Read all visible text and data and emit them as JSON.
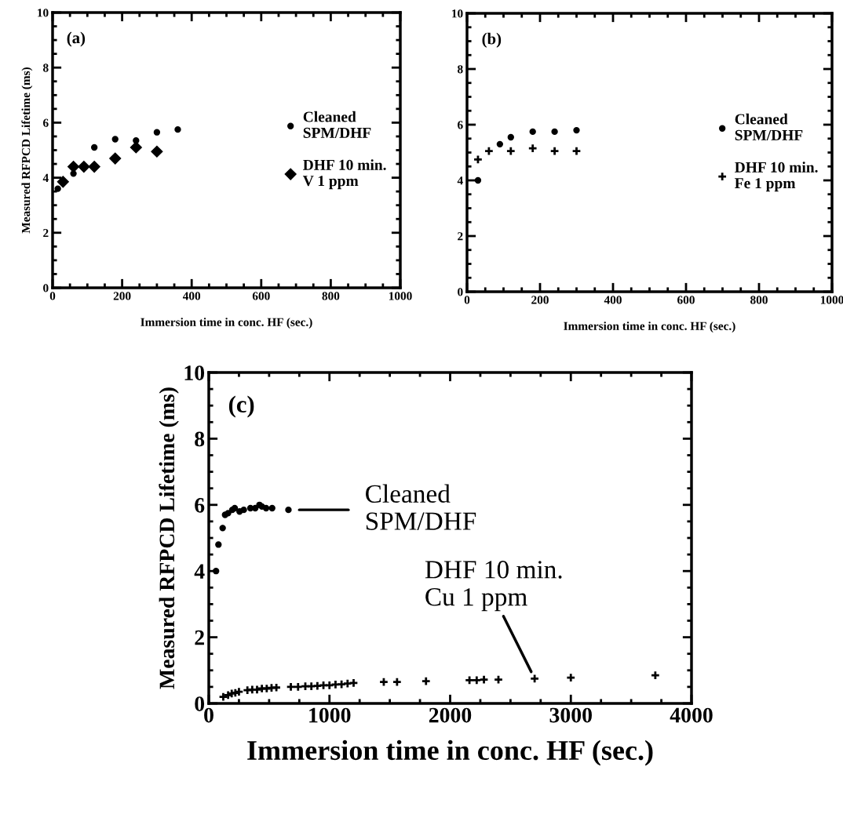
{
  "chart_data": [
    {
      "type": "scatter",
      "xlabel": "Immersion time in conc. HF (sec.)",
      "ylabel": "Measured RFPCD Lifetime (ms)",
      "xlim": [
        0,
        1000
      ],
      "xticks": [
        0,
        200,
        400,
        600,
        800,
        1000
      ],
      "ylim": [
        0,
        10
      ],
      "yticks": [
        0,
        2,
        4,
        6,
        8,
        10
      ],
      "legend": "right",
      "grid": false,
      "annotations": [
        "(a)"
      ],
      "series": [
        {
          "name": "Cleaned\nSPM/DHF",
          "color": "#000000",
          "marker": "circle",
          "x": [
            15,
            60,
            120,
            180,
            240,
            300,
            360
          ],
          "values": [
            3.6,
            4.15,
            5.1,
            5.4,
            5.35,
            5.65,
            5.75
          ]
        },
        {
          "name": "DHF 10 min.\nV 1 ppm",
          "color": "#000000",
          "marker": "diamond",
          "x": [
            30,
            60,
            90,
            120,
            180,
            240,
            300
          ],
          "values": [
            3.85,
            4.4,
            4.4,
            4.4,
            4.7,
            5.1,
            4.95
          ]
        }
      ]
    },
    {
      "type": "scatter",
      "xlabel": "Immersion time in conc. HF (sec.)",
      "xlim": [
        0,
        1000
      ],
      "xticks": [
        0,
        200,
        400,
        600,
        800,
        1000
      ],
      "ylim": [
        0,
        10
      ],
      "yticks": [
        0,
        2,
        4,
        6,
        8,
        10
      ],
      "legend": "right",
      "grid": false,
      "annotations": [
        "(b)"
      ],
      "series": [
        {
          "name": "Cleaned\nSPM/DHF",
          "color": "#000000",
          "marker": "circle",
          "x": [
            30,
            90,
            120,
            180,
            240,
            300
          ],
          "values": [
            4.0,
            5.3,
            5.55,
            5.75,
            5.75,
            5.8
          ]
        },
        {
          "name": "DHF 10 min.\nFe 1 ppm",
          "color": "#000000",
          "marker": "cross",
          "x": [
            30,
            60,
            120,
            180,
            240,
            300
          ],
          "values": [
            4.75,
            5.05,
            5.05,
            5.15,
            5.05,
            5.05
          ]
        }
      ]
    },
    {
      "type": "scatter",
      "xlabel": "Immersion time in conc. HF (sec.)",
      "ylabel": "Measured RFPCD Lifetime (ms)",
      "xlim": [
        0,
        4000
      ],
      "xticks": [
        0,
        1000,
        2000,
        3000,
        4000
      ],
      "ylim": [
        0,
        10
      ],
      "yticks": [
        0,
        2,
        4,
        6,
        8,
        10
      ],
      "grid": false,
      "annotations": [
        "(c)",
        {
          "text": "Cleaned\nSPM/DHF",
          "x": 660,
          "y": 5.85
        },
        {
          "text": "DHF 10 min.\nCu 1 ppm",
          "x": 2700,
          "y": 0.75
        }
      ],
      "series": [
        {
          "color": "#000000",
          "marker": "circle",
          "x": [
            60,
            80,
            115,
            135,
            160,
            195,
            215,
            255,
            290,
            345,
            385,
            420,
            440,
            475,
            525,
            660
          ],
          "values": [
            4.0,
            4.8,
            5.3,
            5.7,
            5.75,
            5.85,
            5.9,
            5.8,
            5.85,
            5.9,
            5.9,
            6.0,
            5.95,
            5.9,
            5.9,
            5.85
          ]
        },
        {
          "color": "#000000",
          "marker": "cross",
          "x": [
            120,
            160,
            190,
            220,
            250,
            320,
            360,
            400,
            440,
            480,
            520,
            560,
            680,
            740,
            800,
            850,
            900,
            950,
            1000,
            1050,
            1100,
            1150,
            1200,
            1450,
            1560,
            1800,
            2160,
            2220,
            2280,
            2400,
            2700,
            3000,
            3700
          ],
          "values": [
            0.2,
            0.25,
            0.3,
            0.32,
            0.35,
            0.4,
            0.42,
            0.42,
            0.45,
            0.45,
            0.47,
            0.48,
            0.5,
            0.5,
            0.52,
            0.52,
            0.53,
            0.55,
            0.55,
            0.57,
            0.58,
            0.6,
            0.62,
            0.65,
            0.65,
            0.67,
            0.7,
            0.7,
            0.72,
            0.72,
            0.75,
            0.78,
            0.85
          ]
        }
      ]
    }
  ]
}
